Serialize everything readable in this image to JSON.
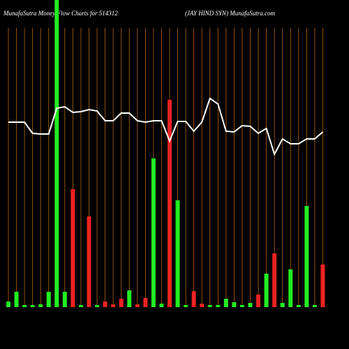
{
  "chart_data": {
    "type": "bar",
    "title": "MunafaSutra  Money Flow  Charts for 514312",
    "subtitle": "(JAY HIND SYN) MunafaSutra.com",
    "categories": [
      null,
      null,
      null,
      null,
      null,
      null,
      null,
      null,
      null,
      null,
      null,
      null,
      null,
      null,
      null,
      null,
      null,
      null,
      null,
      null,
      null,
      null,
      null,
      null,
      null,
      null,
      null,
      null,
      null,
      null,
      null,
      null,
      null,
      null,
      null,
      null,
      null,
      null,
      null,
      null
    ],
    "values": [
      8,
      22,
      3,
      3,
      4,
      22,
      440,
      22,
      169,
      3,
      130,
      3,
      8,
      4,
      12,
      24,
      4,
      13,
      213,
      5,
      297,
      153,
      3,
      23,
      5,
      3,
      3,
      12,
      7,
      3,
      6,
      18,
      48,
      77,
      6,
      54,
      3,
      145,
      3,
      61
    ],
    "colors": [
      "#22ee22",
      "#22ee22",
      "#22ee22",
      "#22ee22",
      "#22ee22",
      "#22ee22",
      "#22ee22",
      "#22ee22",
      "#ee2222",
      "#22ee22",
      "#ee2222",
      "#22ee22",
      "#ee2222",
      "#ee2222",
      "#ee2222",
      "#22ee22",
      "#ee2222",
      "#ee2222",
      "#22ee22",
      "#22ee22",
      "#ee2222",
      "#22ee22",
      "#22ee22",
      "#ee2222",
      "#ee2222",
      "#22ee22",
      "#22ee22",
      "#22ee22",
      "#22ee22",
      "#22ee22",
      "#22ee22",
      "#ee2222",
      "#22ee22",
      "#ee2222",
      "#22ee22",
      "#22ee22",
      "#22ee22",
      "#22ee22",
      "#22ee22",
      "#ee2222"
    ],
    "line": {
      "color": "#ffffff",
      "values": [
        265,
        265,
        265,
        249,
        248,
        248,
        285,
        287,
        279,
        280,
        283,
        281,
        267,
        267,
        278,
        278,
        267,
        265,
        267,
        267,
        238,
        266,
        266,
        252,
        265,
        299,
        291,
        252,
        251,
        260,
        259,
        249,
        256,
        219,
        241,
        234,
        234,
        241,
        241,
        251
      ]
    },
    "ylim": [
      0,
      440
    ],
    "grid_color": "#b8650f"
  }
}
